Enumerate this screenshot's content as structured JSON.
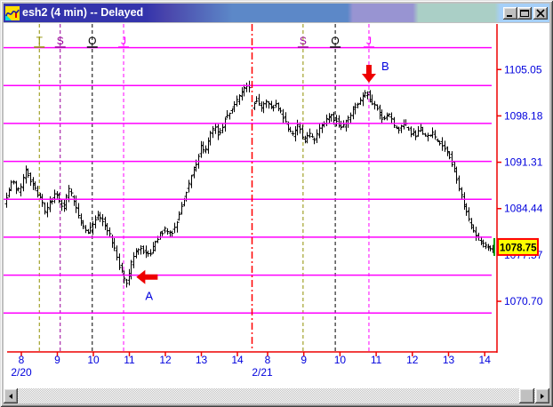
{
  "window": {
    "title": "esh2 (4 min) -- Delayed",
    "controls": {
      "minimize": "minimize",
      "maximize": "maximize",
      "close": "close"
    }
  },
  "chart_data": {
    "type": "ohlc_bar_timeseries",
    "symbol": "esh2",
    "bar_interval": "4 min",
    "feed_status": "Delayed",
    "bar_color": "#000000",
    "y_axis": {
      "tick_labels": [
        "1105.05",
        "1098.18",
        "1091.31",
        "1084.44",
        "1077.57",
        "1070.70"
      ],
      "label_color": "#0000DD",
      "axis_color": "#EE0000",
      "price_max_visible": 1111.8,
      "price_min_visible": 1063.2
    },
    "x_axis": {
      "days": [
        {
          "date": "2/20",
          "hour_labels": [
            "8",
            "9",
            "10",
            "11",
            "12",
            "13",
            "14"
          ]
        },
        {
          "date": "2/21",
          "hour_labels": [
            "8",
            "9",
            "10",
            "11",
            "12",
            "13",
            "14"
          ]
        }
      ],
      "label_color": "#0000DD",
      "axis_color": "#EE0000"
    },
    "gridlines": {
      "color": "#FF00FF",
      "prices": [
        1108.3,
        1102.68,
        1097.06,
        1091.44,
        1085.82,
        1080.2,
        1074.58,
        1068.96
      ]
    },
    "day_separator": {
      "date": "2/21",
      "color": "#FF0000",
      "style": "dash-dot"
    },
    "session_markers": [
      {
        "date": "2/20",
        "hour": 8.5,
        "label": "T",
        "line_color": "#909000",
        "label_color": "#909000"
      },
      {
        "date": "2/20",
        "hour": 9.08,
        "label": "S",
        "line_color": "#990099",
        "label_color": "#990099"
      },
      {
        "date": "2/20",
        "hour": 9.97,
        "label": "O",
        "line_color": "#000000",
        "label_color": "#000000"
      },
      {
        "date": "2/20",
        "hour": 10.84,
        "label": "J",
        "line_color": "#FF00FF",
        "label_color": "#FF00FF"
      },
      {
        "date": "2/21",
        "hour": 8.98,
        "label": "S",
        "line_color": "#909000",
        "label_color": "#990099"
      },
      {
        "date": "2/21",
        "hour": 9.87,
        "label": "O",
        "line_color": "#000000",
        "label_color": "#000000"
      },
      {
        "date": "2/21",
        "hour": 10.8,
        "label": "J",
        "line_color": "#FF00FF",
        "label_color": "#FF00FF"
      }
    ],
    "last_price_badge": {
      "text": "1078.75",
      "bg": "#FFFF00",
      "border": "#FF0000",
      "text_color": "#000000"
    },
    "last_bar_marker_color": "#00A000",
    "annotations": [
      {
        "label": "A",
        "date": "2/20",
        "hour": 11.12,
        "price": 1074.3,
        "arrow": "left",
        "color": "#EE0000",
        "label_color": "#0000DD"
      },
      {
        "label": "B",
        "date": "2/21",
        "hour": 10.8,
        "price": 1103.1,
        "arrow": "down",
        "color": "#EE0000",
        "label_color": "#0000DD"
      }
    ],
    "price_path": [
      {
        "date": "2/20",
        "points": [
          [
            7.58,
            1085.5
          ],
          [
            7.7,
            1087.0
          ],
          [
            7.82,
            1088.8
          ],
          [
            7.95,
            1086.8
          ],
          [
            8.08,
            1088.2
          ],
          [
            8.2,
            1090.3
          ],
          [
            8.35,
            1088.3
          ],
          [
            8.5,
            1086.8
          ],
          [
            8.62,
            1085.6
          ],
          [
            8.72,
            1083.6
          ],
          [
            8.85,
            1085.2
          ],
          [
            9.0,
            1086.8
          ],
          [
            9.12,
            1085.4
          ],
          [
            9.25,
            1084.8
          ],
          [
            9.38,
            1087.2
          ],
          [
            9.5,
            1085.8
          ],
          [
            9.65,
            1083.2
          ],
          [
            9.8,
            1081.6
          ],
          [
            9.95,
            1081.0
          ],
          [
            10.08,
            1082.6
          ],
          [
            10.2,
            1083.6
          ],
          [
            10.35,
            1082.4
          ],
          [
            10.5,
            1080.6
          ],
          [
            10.65,
            1078.2
          ],
          [
            10.8,
            1075.6
          ],
          [
            10.92,
            1073.9
          ],
          [
            11.0,
            1073.4
          ],
          [
            11.1,
            1076.0
          ],
          [
            11.22,
            1077.8
          ],
          [
            11.35,
            1078.6
          ],
          [
            11.5,
            1078.0
          ],
          [
            11.62,
            1077.2
          ],
          [
            11.75,
            1079.0
          ],
          [
            11.9,
            1080.6
          ],
          [
            12.05,
            1081.4
          ],
          [
            12.2,
            1080.6
          ],
          [
            12.35,
            1082.2
          ],
          [
            12.5,
            1084.6
          ],
          [
            12.65,
            1087.2
          ],
          [
            12.8,
            1089.6
          ],
          [
            12.95,
            1091.8
          ],
          [
            13.05,
            1093.6
          ],
          [
            13.15,
            1092.8
          ],
          [
            13.3,
            1095.4
          ],
          [
            13.42,
            1096.8
          ],
          [
            13.55,
            1095.2
          ],
          [
            13.7,
            1097.6
          ],
          [
            13.85,
            1098.8
          ],
          [
            14.0,
            1100.2
          ],
          [
            14.15,
            1101.4
          ],
          [
            14.3,
            1102.6
          ],
          [
            14.36,
            1102.2
          ]
        ]
      },
      {
        "date": "2/21",
        "points": [
          [
            7.62,
            1099.2
          ],
          [
            7.75,
            1100.6
          ],
          [
            7.88,
            1099.4
          ],
          [
            8.0,
            1100.8
          ],
          [
            8.15,
            1099.2
          ],
          [
            8.3,
            1100.0
          ],
          [
            8.45,
            1098.4
          ],
          [
            8.6,
            1096.6
          ],
          [
            8.75,
            1095.4
          ],
          [
            8.9,
            1096.8
          ],
          [
            9.05,
            1094.4
          ],
          [
            9.2,
            1095.6
          ],
          [
            9.35,
            1094.6
          ],
          [
            9.5,
            1096.2
          ],
          [
            9.65,
            1097.2
          ],
          [
            9.8,
            1098.2
          ],
          [
            9.95,
            1097.4
          ],
          [
            10.1,
            1096.4
          ],
          [
            10.25,
            1097.4
          ],
          [
            10.4,
            1099.0
          ],
          [
            10.55,
            1100.2
          ],
          [
            10.7,
            1101.2
          ],
          [
            10.8,
            1101.7
          ],
          [
            10.95,
            1099.8
          ],
          [
            11.1,
            1099.2
          ],
          [
            11.25,
            1097.4
          ],
          [
            11.4,
            1098.4
          ],
          [
            11.55,
            1096.8
          ],
          [
            11.7,
            1096.0
          ],
          [
            11.85,
            1097.0
          ],
          [
            12.0,
            1095.8
          ],
          [
            12.15,
            1095.2
          ],
          [
            12.3,
            1096.2
          ],
          [
            12.45,
            1094.8
          ],
          [
            12.6,
            1095.6
          ],
          [
            12.75,
            1094.4
          ],
          [
            12.9,
            1093.6
          ],
          [
            13.05,
            1092.8
          ],
          [
            13.2,
            1090.6
          ],
          [
            13.35,
            1087.6
          ],
          [
            13.5,
            1084.6
          ],
          [
            13.65,
            1082.2
          ],
          [
            13.8,
            1080.6
          ],
          [
            13.95,
            1079.6
          ],
          [
            14.1,
            1078.6
          ],
          [
            14.25,
            1078.75
          ]
        ]
      }
    ]
  }
}
